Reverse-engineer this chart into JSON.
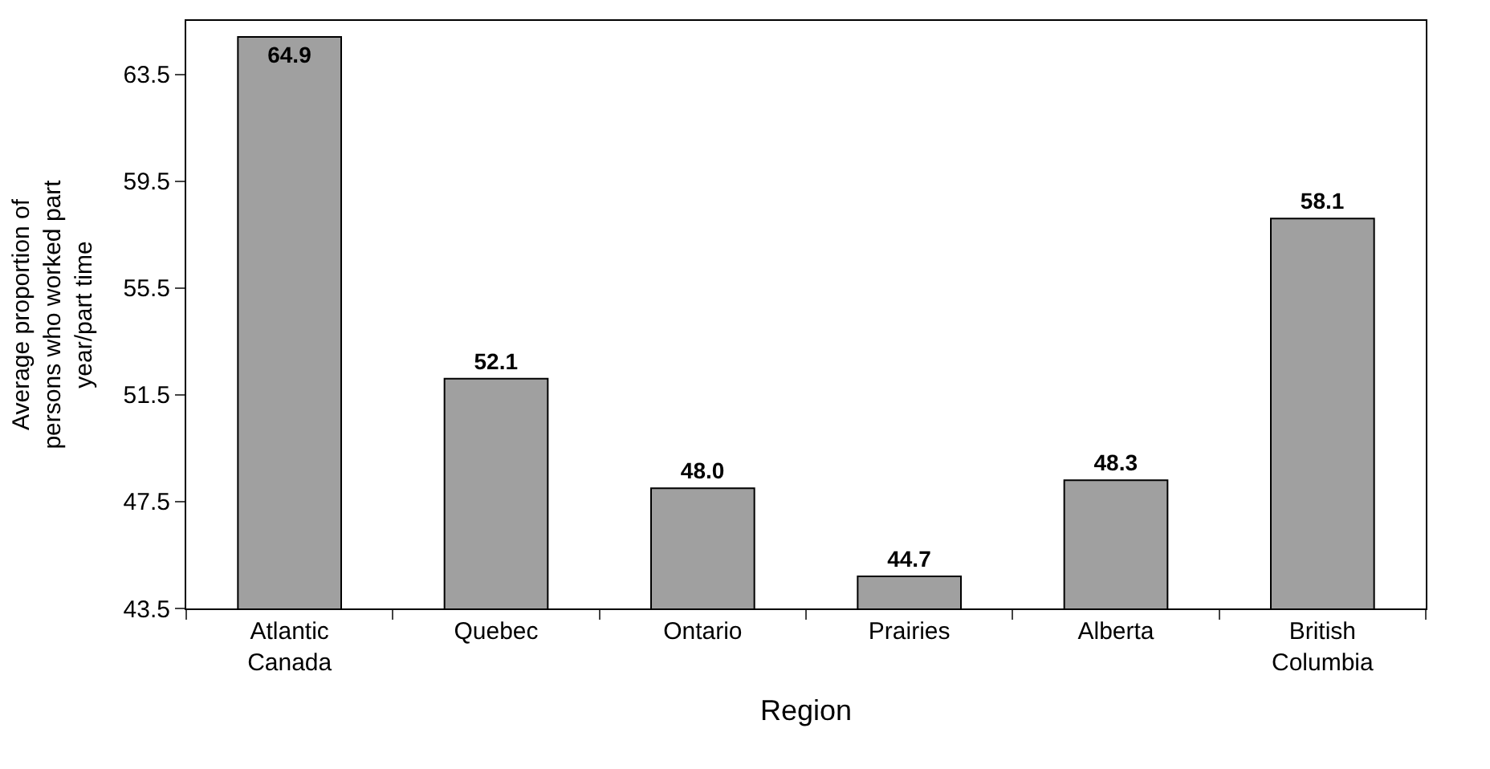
{
  "chart_data": {
    "type": "bar",
    "xlabel": "Region",
    "ylabel": "Average proportion of persons who worked part year/part time",
    "categories": [
      "Atlantic Canada",
      "Quebec",
      "Ontario",
      "Prairies",
      "Alberta",
      "British Columbia"
    ],
    "values": [
      64.9,
      52.1,
      48.0,
      44.7,
      48.3,
      58.1
    ],
    "value_labels": [
      "64.9",
      "52.1",
      "48.0",
      "44.7",
      "48.3",
      "58.1"
    ],
    "color": "#a0a0a0",
    "ylim": [
      43.5,
      65.5
    ],
    "yticks": [
      43.5,
      47.5,
      51.5,
      55.5,
      59.5,
      63.5
    ]
  }
}
